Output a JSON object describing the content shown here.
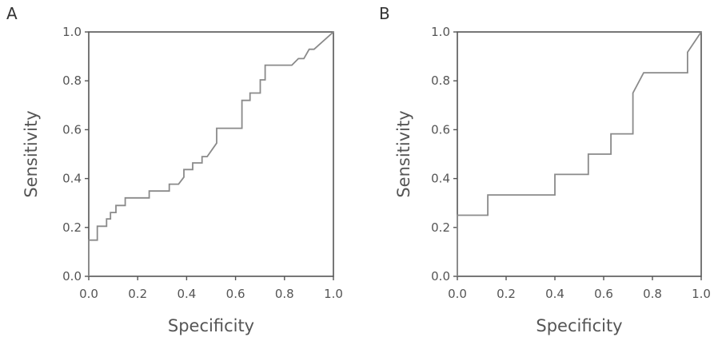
{
  "chart_data": [
    {
      "type": "line",
      "panel_label": "A",
      "xlabel": "Specificity",
      "ylabel": "Sensitivity",
      "xlim": [
        0,
        1
      ],
      "ylim": [
        0,
        1
      ],
      "xticks": [
        "0.0",
        "0.2",
        "0.4",
        "0.6",
        "0.8",
        "1.0"
      ],
      "yticks": [
        "0.0",
        "0.2",
        "0.4",
        "0.6",
        "0.8",
        "1.0"
      ],
      "grid": false,
      "line_color": "#8a8a8a",
      "axis_color": "#555555",
      "points": [
        [
          0,
          0
        ],
        [
          0,
          0.148
        ],
        [
          0.035,
          0.148
        ],
        [
          0.035,
          0.205
        ],
        [
          0.073,
          0.205
        ],
        [
          0.073,
          0.235
        ],
        [
          0.089,
          0.235
        ],
        [
          0.089,
          0.261
        ],
        [
          0.111,
          0.261
        ],
        [
          0.111,
          0.29
        ],
        [
          0.149,
          0.29
        ],
        [
          0.149,
          0.321
        ],
        [
          0.247,
          0.321
        ],
        [
          0.247,
          0.349
        ],
        [
          0.329,
          0.349
        ],
        [
          0.329,
          0.377
        ],
        [
          0.367,
          0.377
        ],
        [
          0.389,
          0.406
        ],
        [
          0.389,
          0.437
        ],
        [
          0.425,
          0.437
        ],
        [
          0.425,
          0.464
        ],
        [
          0.463,
          0.464
        ],
        [
          0.463,
          0.49
        ],
        [
          0.484,
          0.49
        ],
        [
          0.523,
          0.545
        ],
        [
          0.523,
          0.606
        ],
        [
          0.626,
          0.606
        ],
        [
          0.626,
          0.72
        ],
        [
          0.659,
          0.72
        ],
        [
          0.659,
          0.75
        ],
        [
          0.701,
          0.75
        ],
        [
          0.701,
          0.804
        ],
        [
          0.721,
          0.804
        ],
        [
          0.721,
          0.864
        ],
        [
          0.83,
          0.864
        ],
        [
          0.857,
          0.891
        ],
        [
          0.879,
          0.891
        ],
        [
          0.901,
          0.929
        ],
        [
          0.921,
          0.929
        ],
        [
          1,
          1
        ]
      ]
    },
    {
      "type": "line",
      "panel_label": "B",
      "xlabel": "Specificity",
      "ylabel": "Sensitivity",
      "xlim": [
        0,
        1
      ],
      "ylim": [
        0,
        1
      ],
      "xticks": [
        "0.0",
        "0.2",
        "0.4",
        "0.6",
        "0.8",
        "1.0"
      ],
      "yticks": [
        "0.0",
        "0.2",
        "0.4",
        "0.6",
        "0.8",
        "1.0"
      ],
      "grid": false,
      "line_color": "#8a8a8a",
      "axis_color": "#555555",
      "points": [
        [
          0,
          0
        ],
        [
          0,
          0.25
        ],
        [
          0.125,
          0.25
        ],
        [
          0.125,
          0.333
        ],
        [
          0.4,
          0.333
        ],
        [
          0.4,
          0.417
        ],
        [
          0.537,
          0.417
        ],
        [
          0.537,
          0.5
        ],
        [
          0.63,
          0.5
        ],
        [
          0.63,
          0.583
        ],
        [
          0.72,
          0.583
        ],
        [
          0.72,
          0.75
        ],
        [
          0.764,
          0.833
        ],
        [
          0.944,
          0.833
        ],
        [
          0.944,
          0.917
        ],
        [
          1,
          1
        ]
      ]
    }
  ]
}
